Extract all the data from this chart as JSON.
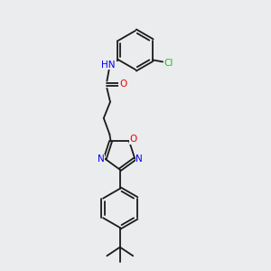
{
  "background_color": "#eaecee",
  "figsize": [
    3.0,
    3.0
  ],
  "dpi": 100,
  "colors": {
    "C": "#1a1a1a",
    "N": "#0000ee",
    "O": "#ee0000",
    "Cl": "#22bb22"
  },
  "bond_lw": 1.3,
  "font_size": 7.0
}
